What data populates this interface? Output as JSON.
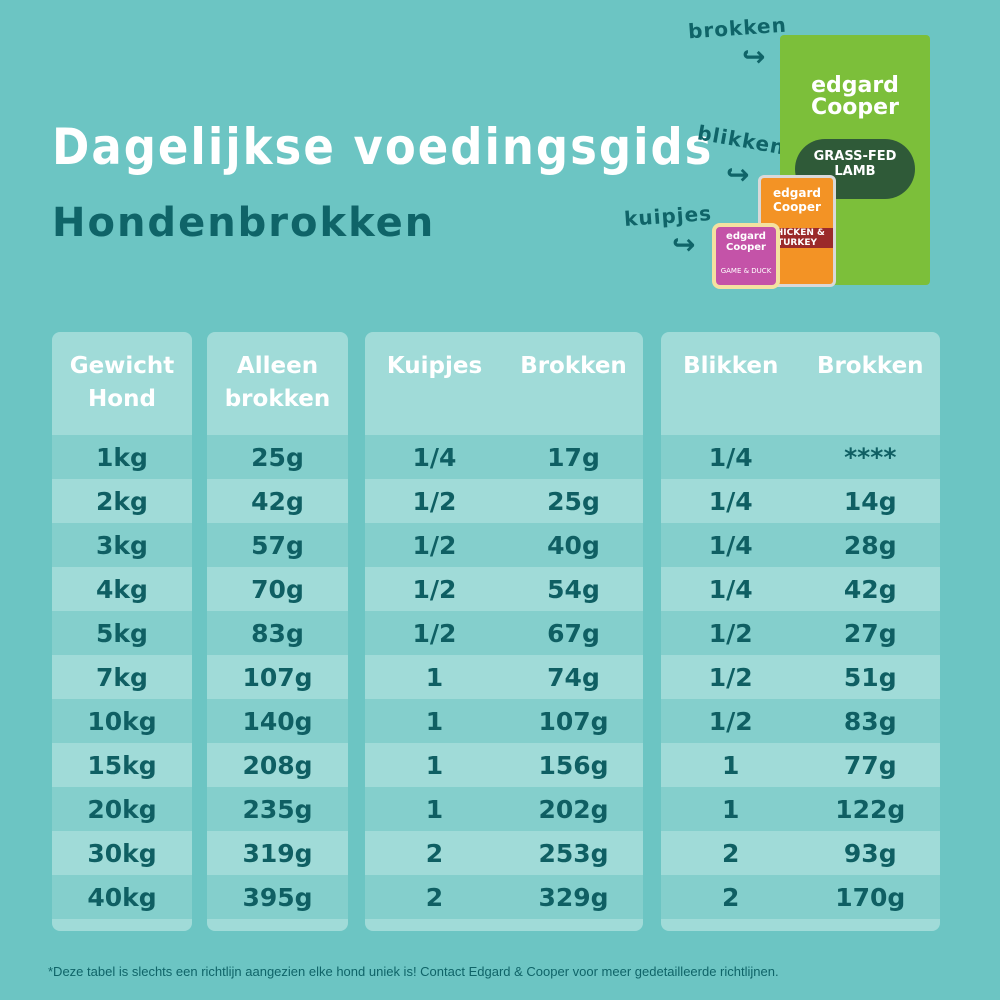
{
  "header": {
    "title": "Dagelijkse voedingsgids",
    "subtitle": "Hondenbrokken"
  },
  "products": {
    "labels": {
      "brokken": "brokken",
      "blikken": "blikken",
      "kuipjes": "kuipjes"
    },
    "bag": {
      "logo": "edgard Cooper",
      "product": "GRASS-FED LAMB",
      "color": "#7cbf3a"
    },
    "can": {
      "logo": "edgard Cooper",
      "product": "CHICKEN & TURKEY",
      "color": "#f39325"
    },
    "tray": {
      "logo": "edgard Cooper",
      "product": "GAME & DUCK",
      "color": "#c453a8"
    }
  },
  "colors": {
    "background": "#6cc5c3",
    "header_cell": "#a0dbd8",
    "row_dark": "#84cfcc",
    "text": "#0f5f63"
  },
  "table": {
    "headers": {
      "weight": "Gewicht Hond",
      "alone": "Alleen brokken",
      "kuipjes": "Kuipjes",
      "kuipjes_brokken": "Brokken",
      "blikken": "Blikken",
      "blikken_brokken": "Brokken"
    },
    "rows": [
      {
        "weight": "1kg",
        "alone": "25g",
        "kuipjes": "1/4",
        "kuipjes_brokken": "17g",
        "blikken": "1/4",
        "blikken_brokken": "****"
      },
      {
        "weight": "2kg",
        "alone": "42g",
        "kuipjes": "1/2",
        "kuipjes_brokken": "25g",
        "blikken": "1/4",
        "blikken_brokken": "14g"
      },
      {
        "weight": "3kg",
        "alone": "57g",
        "kuipjes": "1/2",
        "kuipjes_brokken": "40g",
        "blikken": "1/4",
        "blikken_brokken": "28g"
      },
      {
        "weight": "4kg",
        "alone": "70g",
        "kuipjes": "1/2",
        "kuipjes_brokken": "54g",
        "blikken": "1/4",
        "blikken_brokken": "42g"
      },
      {
        "weight": "5kg",
        "alone": "83g",
        "kuipjes": "1/2",
        "kuipjes_brokken": "67g",
        "blikken": "1/2",
        "blikken_brokken": "27g"
      },
      {
        "weight": "7kg",
        "alone": "107g",
        "kuipjes": "1",
        "kuipjes_brokken": "74g",
        "blikken": "1/2",
        "blikken_brokken": "51g"
      },
      {
        "weight": "10kg",
        "alone": "140g",
        "kuipjes": "1",
        "kuipjes_brokken": "107g",
        "blikken": "1/2",
        "blikken_brokken": "83g"
      },
      {
        "weight": "15kg",
        "alone": "208g",
        "kuipjes": "1",
        "kuipjes_brokken": "156g",
        "blikken": "1",
        "blikken_brokken": "77g"
      },
      {
        "weight": "20kg",
        "alone": "235g",
        "kuipjes": "1",
        "kuipjes_brokken": "202g",
        "blikken": "1",
        "blikken_brokken": "122g"
      },
      {
        "weight": "30kg",
        "alone": "319g",
        "kuipjes": "2",
        "kuipjes_brokken": "253g",
        "blikken": "2",
        "blikken_brokken": "93g"
      },
      {
        "weight": "40kg",
        "alone": "395g",
        "kuipjes": "2",
        "kuipjes_brokken": "329g",
        "blikken": "2",
        "blikken_brokken": "170g"
      }
    ]
  },
  "footnote": "*Deze tabel is slechts een richtlijn aangezien elke hond uniek is! Contact Edgard & Cooper voor meer gedetailleerde richtlijnen."
}
